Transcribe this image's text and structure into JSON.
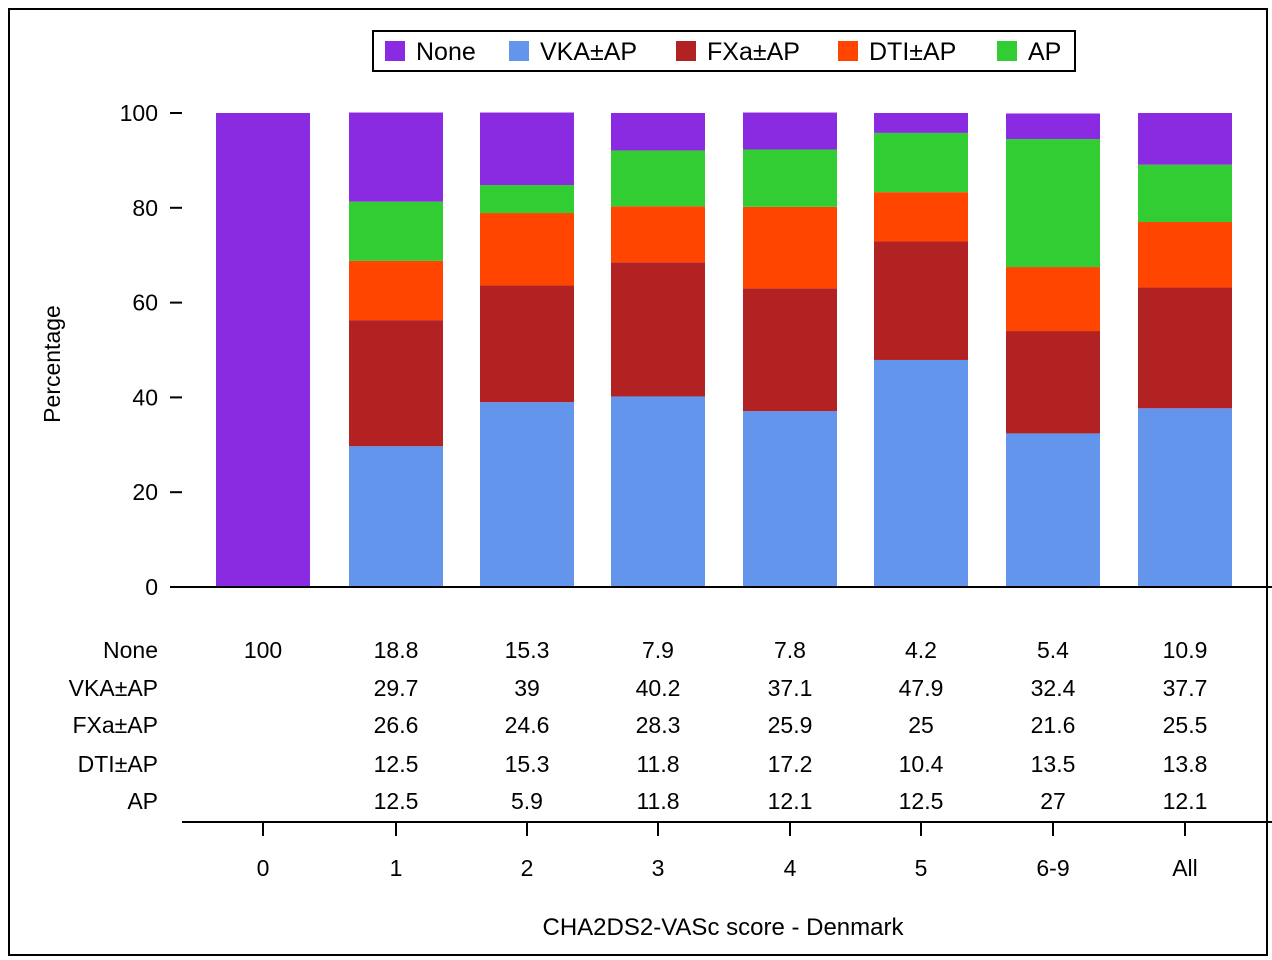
{
  "chart_data": {
    "type": "bar",
    "stacked": true,
    "categories": [
      "0",
      "1",
      "2",
      "3",
      "4",
      "5",
      "6-9",
      "All"
    ],
    "series": [
      {
        "name": "None",
        "color": "#8A2BE2",
        "values": [
          100,
          18.8,
          15.3,
          7.9,
          7.8,
          4.2,
          5.4,
          10.9
        ]
      },
      {
        "name": "VKA±AP",
        "color": "#6495ED",
        "values": [
          null,
          29.7,
          39,
          40.2,
          37.1,
          47.9,
          32.4,
          37.7
        ]
      },
      {
        "name": "FXa±AP",
        "color": "#B22222",
        "values": [
          null,
          26.6,
          24.6,
          28.3,
          25.9,
          25,
          21.6,
          25.5
        ]
      },
      {
        "name": "DTI±AP",
        "color": "#FF4500",
        "values": [
          null,
          12.5,
          15.3,
          11.8,
          17.2,
          10.4,
          13.5,
          13.8
        ]
      },
      {
        "name": "AP",
        "color": "#32CD32",
        "values": [
          null,
          12.5,
          5.9,
          11.8,
          12.1,
          12.5,
          27,
          12.1
        ]
      }
    ],
    "stack_order": [
      "VKA±AP",
      "FXa±AP",
      "DTI±AP",
      "AP",
      "None"
    ],
    "xlabel": "CHA2DS2-VASc score - Denmark",
    "ylabel": "Percentage",
    "ylim": [
      0,
      100
    ],
    "yticks": [
      0,
      20,
      40,
      60,
      80,
      100
    ],
    "legend_position": "top-center",
    "grid": false,
    "table_values": [
      {
        "label": "None",
        "values": [
          "100",
          "18.8",
          "15.3",
          "7.9",
          "7.8",
          "4.2",
          "5.4",
          "10.9"
        ]
      },
      {
        "label": "VKA±AP",
        "values": [
          "",
          "29.7",
          "39",
          "40.2",
          "37.1",
          "47.9",
          "32.4",
          "37.7"
        ]
      },
      {
        "label": "FXa±AP",
        "values": [
          "",
          "26.6",
          "24.6",
          "28.3",
          "25.9",
          "25",
          "21.6",
          "25.5"
        ]
      },
      {
        "label": "DTI±AP",
        "values": [
          "",
          "12.5",
          "15.3",
          "11.8",
          "17.2",
          "10.4",
          "13.5",
          "13.8"
        ]
      },
      {
        "label": "AP",
        "values": [
          "",
          "12.5",
          "5.9",
          "11.8",
          "12.1",
          "12.5",
          "27",
          "12.1"
        ]
      }
    ]
  }
}
